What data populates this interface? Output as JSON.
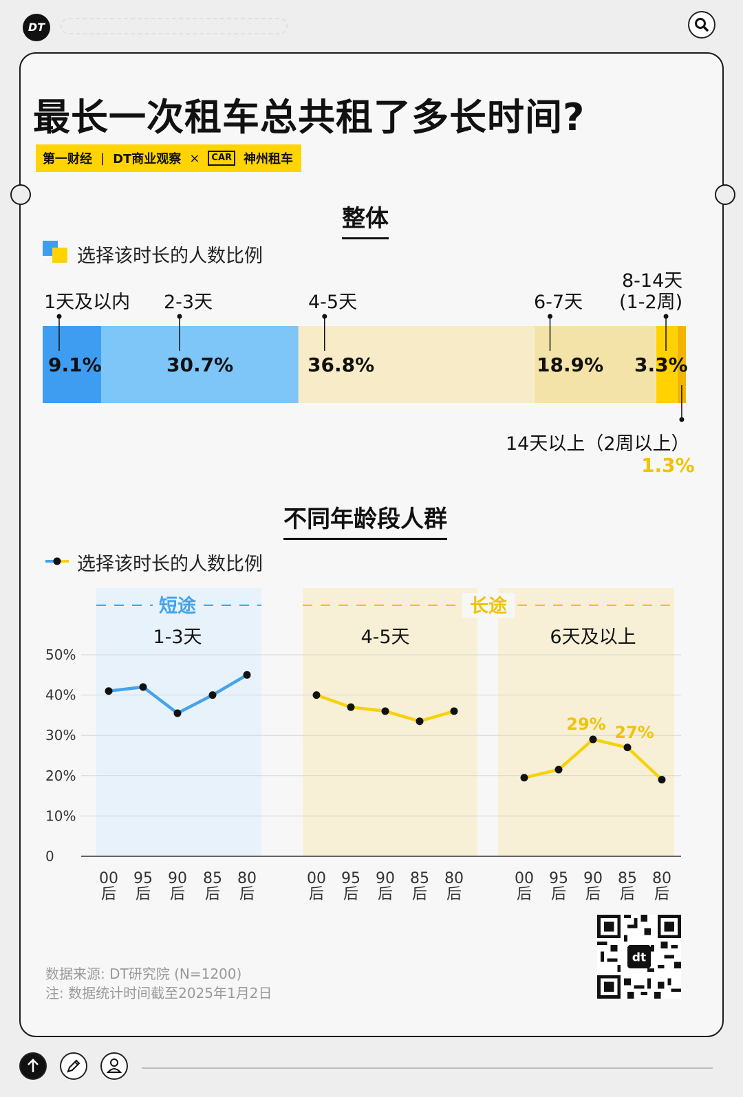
{
  "app": {
    "logo": "DT",
    "search_icon": "search-icon"
  },
  "header": {
    "title": "最长一次租车总共租了多长时间?",
    "brands": [
      "第一财经",
      "DT商业观察",
      "×",
      "CAR",
      "神州租车"
    ]
  },
  "colors": {
    "blue_dark": "#3e9df0",
    "blue_light": "#7ec6f8",
    "cream": "#f7ecc7",
    "cream_dark": "#f4e3a8",
    "yellow": "#ffd200",
    "yellow_dark": "#f2b400",
    "line_blue": "#44a3ea",
    "line_yellow": "#f5d20b"
  },
  "chart_data": [
    {
      "type": "bar",
      "title": "整体",
      "legend": "选择该时长的人数比例",
      "categories": [
        "1天及以内",
        "2-3天",
        "4-5天",
        "6-7天",
        "8-14天(1-2周)",
        "14天以上（2周以上）"
      ],
      "values": [
        9.1,
        30.7,
        36.8,
        18.9,
        3.3,
        1.3
      ],
      "labels": {
        "cats": [
          "1天及以内",
          "2-3天",
          "4-5天",
          "6-7天",
          "8-14天",
          "(1-2周)",
          "14天以上（2周以上）"
        ],
        "vals": [
          "9.1%",
          "30.7%",
          "36.8%",
          "18.9%",
          "3.3%",
          "1.3%"
        ]
      },
      "stacked": true,
      "unit": "%"
    },
    {
      "type": "line",
      "title": "不同年龄段人群",
      "legend": "选择该时长的人数比例",
      "ylim": [
        0,
        50
      ],
      "yticks": [
        "0",
        "10%",
        "20%",
        "30%",
        "40%",
        "50%"
      ],
      "groups": [
        {
          "name": "1-3天",
          "category": "短途",
          "x": [
            "00后",
            "95后",
            "90后",
            "85后",
            "80后"
          ],
          "values": [
            41,
            42,
            35.5,
            40,
            45
          ]
        },
        {
          "name": "4-5天",
          "category": "长途",
          "x": [
            "00后",
            "95后",
            "90后",
            "85后",
            "80后"
          ],
          "values": [
            40,
            37,
            36,
            33.5,
            36
          ]
        },
        {
          "name": "6天及以上",
          "category": "长途",
          "x": [
            "00后",
            "95后",
            "90后",
            "85后",
            "80后"
          ],
          "values": [
            19.5,
            21.5,
            29,
            27,
            19
          ]
        }
      ],
      "annotations": {
        "g2_p2": "29%",
        "g2_p3": "27%"
      },
      "xlabels": {
        "top": [
          "00",
          "95",
          "90",
          "85",
          "80"
        ],
        "bottom": "后"
      },
      "band_labels": {
        "short": "短途",
        "long": "长途"
      }
    }
  ],
  "footer": {
    "source": "数据来源: DT研究院 (N=1200)",
    "note": "注: 数据统计时间截至2025年1月2日"
  },
  "bottom_bar": {
    "icons": [
      "arrow-up-icon",
      "pencil-icon",
      "user-icon"
    ]
  }
}
